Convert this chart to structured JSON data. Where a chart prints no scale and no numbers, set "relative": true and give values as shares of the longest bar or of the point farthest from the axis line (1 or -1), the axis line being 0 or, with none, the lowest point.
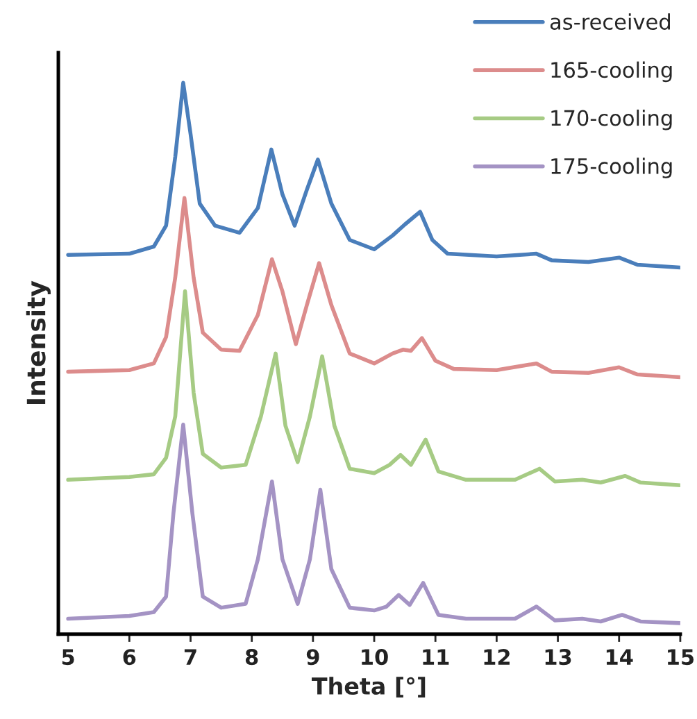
{
  "chart_data": {
    "type": "line",
    "relative": true,
    "xlabel": "Theta [°]",
    "ylabel": "Intensity",
    "xlim": [
      4.84,
      15
    ],
    "xticks": [
      5,
      6,
      7,
      8,
      9,
      10,
      11,
      12,
      13,
      14,
      15
    ],
    "grid": false,
    "legend": "top right",
    "marker": "none",
    "line_style": "solid",
    "series": [
      {
        "name": "as-received",
        "color": "#4a7ebb",
        "x": [
          5.0,
          6.0,
          6.4,
          6.6,
          6.75,
          6.88,
          7.0,
          7.15,
          7.4,
          7.8,
          8.1,
          8.32,
          8.5,
          8.7,
          8.9,
          9.08,
          9.3,
          9.6,
          10.0,
          10.3,
          10.5,
          10.75,
          10.95,
          11.2,
          12.0,
          12.65,
          12.9,
          13.5,
          14.0,
          14.3,
          15.0
        ],
        "values": [
          0.688,
          0.69,
          0.703,
          0.741,
          0.866,
          1.0,
          0.907,
          0.781,
          0.741,
          0.728,
          0.773,
          0.879,
          0.798,
          0.741,
          0.806,
          0.861,
          0.781,
          0.715,
          0.698,
          0.723,
          0.743,
          0.766,
          0.715,
          0.69,
          0.685,
          0.69,
          0.678,
          0.675,
          0.683,
          0.67,
          0.665
        ]
      },
      {
        "name": "165-cooling",
        "color": "#dc8c8c",
        "x": [
          5.0,
          6.0,
          6.4,
          6.6,
          6.75,
          6.9,
          7.05,
          7.2,
          7.5,
          7.8,
          8.1,
          8.33,
          8.5,
          8.72,
          8.9,
          9.1,
          9.3,
          9.6,
          10.0,
          10.3,
          10.47,
          10.6,
          10.78,
          11.0,
          11.3,
          12.0,
          12.65,
          12.9,
          13.5,
          14.0,
          14.3,
          15.0
        ],
        "values": [
          0.476,
          0.479,
          0.491,
          0.539,
          0.647,
          0.791,
          0.647,
          0.547,
          0.516,
          0.514,
          0.579,
          0.68,
          0.622,
          0.526,
          0.597,
          0.673,
          0.597,
          0.509,
          0.491,
          0.509,
          0.516,
          0.514,
          0.537,
          0.496,
          0.481,
          0.479,
          0.491,
          0.476,
          0.474,
          0.484,
          0.471,
          0.466
        ]
      },
      {
        "name": "170-cooling",
        "color": "#a6cb84",
        "x": [
          5.0,
          6.0,
          6.4,
          6.6,
          6.75,
          6.91,
          7.05,
          7.2,
          7.5,
          7.9,
          8.15,
          8.39,
          8.55,
          8.75,
          8.95,
          9.15,
          9.35,
          9.6,
          10.0,
          10.25,
          10.43,
          10.6,
          10.84,
          11.05,
          11.5,
          12.3,
          12.7,
          12.95,
          13.4,
          13.7,
          14.1,
          14.35,
          15.0
        ],
        "values": [
          0.28,
          0.285,
          0.29,
          0.32,
          0.395,
          0.622,
          0.438,
          0.327,
          0.302,
          0.307,
          0.395,
          0.509,
          0.378,
          0.312,
          0.395,
          0.504,
          0.378,
          0.3,
          0.292,
          0.307,
          0.325,
          0.307,
          0.353,
          0.295,
          0.28,
          0.28,
          0.3,
          0.277,
          0.28,
          0.275,
          0.287,
          0.275,
          0.27
        ]
      },
      {
        "name": "175-cooling",
        "color": "#a493c4",
        "x": [
          5.0,
          6.0,
          6.4,
          6.6,
          6.72,
          6.88,
          7.03,
          7.2,
          7.5,
          7.9,
          8.1,
          8.33,
          8.5,
          8.75,
          8.95,
          9.12,
          9.3,
          9.6,
          10.0,
          10.2,
          10.4,
          10.58,
          10.8,
          11.05,
          11.5,
          12.3,
          12.65,
          12.95,
          13.4,
          13.7,
          14.05,
          14.35,
          15.0
        ],
        "values": [
          0.028,
          0.033,
          0.04,
          0.068,
          0.219,
          0.38,
          0.219,
          0.068,
          0.048,
          0.055,
          0.136,
          0.277,
          0.136,
          0.055,
          0.136,
          0.262,
          0.118,
          0.048,
          0.043,
          0.05,
          0.071,
          0.053,
          0.093,
          0.035,
          0.028,
          0.028,
          0.05,
          0.025,
          0.028,
          0.023,
          0.035,
          0.023,
          0.02
        ]
      }
    ]
  }
}
